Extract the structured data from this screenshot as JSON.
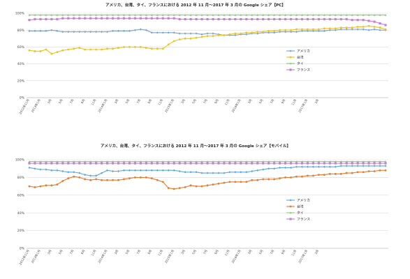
{
  "chart_data": [
    {
      "type": "line",
      "title": "アメリカ、台湾、タイ、フランスにおける 2012 年 11 月～2017 年 3 月の Google シェア【PC】",
      "xlabel": "",
      "ylabel": "",
      "ylim": [
        0,
        100
      ],
      "y_ticks": [
        "0%",
        "20%",
        "40%",
        "60%",
        "80%",
        "100%"
      ],
      "x_tick_labels": [
        "2012年11月",
        "2013年1月",
        "3月",
        "5月",
        "7月",
        "9月",
        "11月",
        "2014年1月",
        "3月",
        "5月",
        "7月",
        "9月",
        "11月",
        "2015年1月",
        "3月",
        "5月",
        "7月",
        "9月",
        "11月",
        "2016年1月",
        "3月",
        "5月",
        "7月",
        "9月",
        "11月",
        "2017年1月",
        "3月"
      ],
      "grid": true,
      "legend_position": "right",
      "series": [
        {
          "name": "アメリカ",
          "color": "#7aa3cc",
          "marker": "diamond",
          "values": [
            79,
            79,
            79,
            79,
            80,
            79,
            78,
            78,
            78,
            78,
            78,
            78,
            78,
            78,
            78,
            79,
            79,
            79,
            79,
            80,
            81,
            80,
            77,
            77,
            77,
            77,
            77,
            76,
            76,
            76,
            76,
            75,
            76,
            76,
            75,
            74,
            74,
            74,
            75,
            75,
            76,
            76,
            77,
            77,
            77,
            78,
            78,
            78,
            78,
            79,
            79,
            79,
            79,
            79,
            80,
            80,
            81,
            81,
            81,
            81,
            81,
            80,
            81,
            80,
            80
          ]
        },
        {
          "name": "台湾",
          "color": "#f2c21b",
          "marker": "circle",
          "values": [
            56,
            55,
            55,
            57,
            52,
            54,
            56,
            57,
            58,
            59,
            57,
            57,
            57,
            57,
            58,
            58,
            59,
            60,
            60,
            60,
            60,
            59,
            58,
            58,
            58,
            63,
            67,
            69,
            70,
            70,
            71,
            72,
            73,
            73,
            74,
            74,
            75,
            76,
            76,
            77,
            77,
            78,
            78,
            79,
            79,
            80,
            80,
            80,
            81,
            81,
            81,
            81,
            81,
            82,
            82,
            82,
            83,
            83,
            83,
            84,
            84,
            85,
            84,
            83,
            81
          ]
        },
        {
          "name": "タイ",
          "color": "#8ccf73",
          "marker": "triangle",
          "values": [
            98,
            98,
            98,
            98,
            98,
            98,
            98,
            98,
            98,
            98,
            98,
            98,
            98,
            98,
            98,
            98,
            98,
            98,
            98,
            98,
            98,
            98,
            98,
            98,
            98,
            98,
            98,
            98,
            98,
            98,
            98,
            98,
            98,
            98,
            98,
            98,
            98,
            98,
            98,
            98,
            98,
            98,
            98,
            98,
            98,
            98,
            98,
            98,
            98,
            98,
            98,
            98,
            98,
            98,
            98,
            98,
            98,
            98,
            98,
            98,
            98,
            98,
            98,
            98,
            98
          ]
        },
        {
          "name": "フランス",
          "color": "#c77fd6",
          "marker": "square",
          "values": [
            92,
            93,
            93,
            93,
            93,
            93,
            94,
            94,
            94,
            94,
            94,
            94,
            94,
            94,
            94,
            94,
            94,
            94,
            94,
            94,
            94,
            94,
            94,
            94,
            94,
            94,
            94,
            93,
            93,
            93,
            93,
            93,
            93,
            93,
            93,
            93,
            93,
            93,
            93,
            93,
            93,
            93,
            93,
            93,
            93,
            93,
            93,
            93,
            93,
            93,
            93,
            93,
            93,
            93,
            93,
            93,
            93,
            93,
            92,
            92,
            92,
            91,
            90,
            88,
            86
          ]
        }
      ]
    },
    {
      "type": "line",
      "title": "アメリカ、台湾、タイ、フランスにおける 2012 年 11 月～2017 年 3 月の Google シェア【モバイル】",
      "xlabel": "",
      "ylabel": "",
      "ylim": [
        0,
        100
      ],
      "y_ticks": [
        "0%",
        "20%",
        "40%",
        "60%",
        "80%",
        "100%"
      ],
      "x_tick_labels": [
        "2012年11月",
        "2013年1月",
        "3月",
        "5月",
        "7月",
        "9月",
        "11月",
        "2014年1月",
        "3月",
        "5月",
        "7月",
        "9月",
        "11月",
        "2015年1月",
        "3月",
        "5月",
        "7月",
        "9月",
        "11月",
        "2016年1月",
        "3月",
        "5月",
        "7月",
        "9月",
        "11月",
        "2017年1月",
        "3月"
      ],
      "grid": true,
      "legend_position": "right",
      "series": [
        {
          "name": "アメリカ",
          "color": "#5aa8dc",
          "marker": "diamond",
          "values": [
            91,
            90,
            89,
            89,
            88,
            88,
            87,
            86,
            86,
            85,
            83,
            82,
            82,
            85,
            88,
            87,
            87,
            88,
            88,
            88,
            88,
            88,
            88,
            88,
            88,
            88,
            88,
            87,
            86,
            86,
            86,
            85,
            85,
            85,
            85,
            85,
            86,
            86,
            86,
            86,
            87,
            88,
            89,
            90,
            90,
            91,
            91,
            91,
            92,
            92,
            92,
            92,
            92,
            92,
            92,
            92,
            93,
            93,
            93,
            93,
            93,
            93,
            93,
            93,
            93
          ]
        },
        {
          "name": "台湾",
          "color": "#e87b2b",
          "marker": "circle",
          "values": [
            70,
            69,
            70,
            71,
            71,
            72,
            76,
            79,
            81,
            80,
            78,
            77,
            78,
            77,
            77,
            77,
            77,
            78,
            79,
            80,
            80,
            80,
            79,
            77,
            75,
            68,
            67,
            68,
            69,
            71,
            70,
            70,
            71,
            72,
            73,
            74,
            75,
            75,
            75,
            75,
            77,
            77,
            78,
            78,
            78,
            79,
            80,
            80,
            81,
            81,
            82,
            82,
            83,
            83,
            84,
            84,
            84,
            85,
            85,
            86,
            86,
            87,
            87,
            88,
            88
          ]
        },
        {
          "name": "タイ",
          "color": "#8ccf73",
          "marker": "triangle",
          "values": [
            98,
            98,
            98,
            98,
            98,
            98,
            98,
            98,
            98,
            98,
            98,
            98,
            98,
            98,
            98,
            98,
            98,
            98,
            98,
            98,
            98,
            98,
            98,
            98,
            98,
            98,
            98,
            98,
            98,
            98,
            98,
            98,
            98,
            98,
            98,
            98,
            98,
            98,
            98,
            98,
            98,
            98,
            98,
            98,
            98,
            98,
            98,
            98,
            98,
            98,
            98,
            98,
            98,
            98,
            98,
            98,
            98,
            98,
            98,
            98,
            98,
            98,
            98,
            98,
            98
          ]
        },
        {
          "name": "フランス",
          "color": "#c77fd6",
          "marker": "square",
          "values": [
            96,
            96,
            96,
            96,
            96,
            96,
            96,
            96,
            96,
            96,
            96,
            96,
            96,
            96,
            96,
            96,
            96,
            96,
            96,
            96,
            96,
            96,
            96,
            96,
            96,
            96,
            96,
            96,
            96,
            96,
            96,
            96,
            96,
            96,
            96,
            96,
            96,
            96,
            96,
            96,
            96,
            96,
            96,
            96,
            96,
            96,
            96,
            96,
            96,
            96,
            96,
            96,
            96,
            96,
            96,
            96,
            96,
            96,
            96,
            96,
            96,
            96,
            96,
            96,
            96
          ]
        }
      ]
    }
  ]
}
